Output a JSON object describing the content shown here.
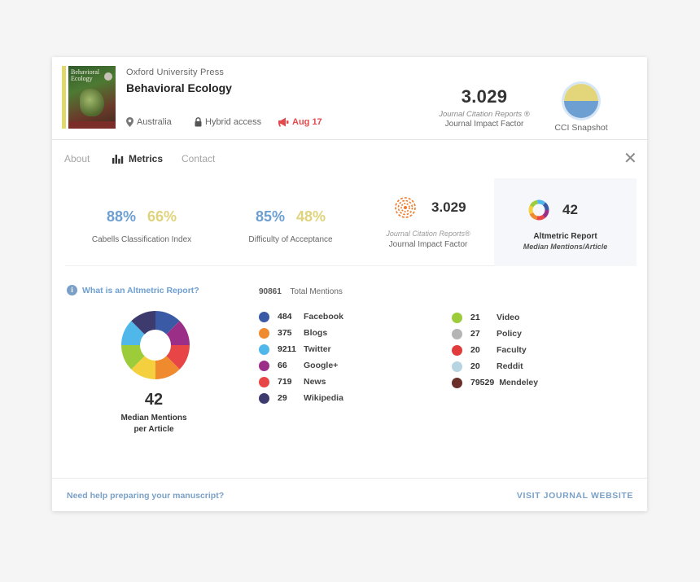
{
  "header": {
    "cover_title": "Behavioral Ecology",
    "publisher": "Oxford University Press",
    "journal": "Behavioral Ecology",
    "location": "Australia",
    "access": "Hybrid access",
    "date": "Aug 17",
    "jif_value": "3.029",
    "jif_label_1": "Journal Citation Reports ®",
    "jif_label_2": "Journal Impact Factor",
    "cci_label": "CCI Snapshot",
    "colors": {
      "accent_bar": "#e1d86b",
      "alert": "#e5484d"
    }
  },
  "tabs": [
    {
      "label": "About"
    },
    {
      "label": "Metrics",
      "active": true
    },
    {
      "label": "Contact"
    }
  ],
  "metrics": {
    "cci": {
      "blue": "88%",
      "yellow": "66%",
      "caption": "Cabells Classification Index"
    },
    "doa": {
      "blue": "85%",
      "yellow": "48%",
      "caption": "Difficulty of Acceptance"
    },
    "jif": {
      "value": "3.029",
      "label_1": "Journal Citation Reports®",
      "label_2": "Journal Impact Factor"
    },
    "altmetric": {
      "value": "42",
      "label_1": "Altmetric Report",
      "label_2": "Median Mentions/Article"
    }
  },
  "altmetric": {
    "help_link": "What is an Altmetric Report?",
    "median": "42",
    "median_caption_1": "Median Mentions",
    "median_caption_2": "per Article",
    "total_value": "90861",
    "total_label": "Total Mentions",
    "sources_left": [
      {
        "count": "484",
        "name": "Facebook",
        "color": "#3b5aa6"
      },
      {
        "count": "375",
        "name": "Blogs",
        "color": "#f08a2e"
      },
      {
        "count": "9211",
        "name": "Twitter",
        "color": "#4fb7ea"
      },
      {
        "count": "66",
        "name": "Google+",
        "color": "#9b2f87"
      },
      {
        "count": "719",
        "name": "News",
        "color": "#e84646"
      },
      {
        "count": "29",
        "name": "Wikipedia",
        "color": "#3d3a6e"
      }
    ],
    "sources_right": [
      {
        "count": "21",
        "name": "Video",
        "color": "#9ccc3a"
      },
      {
        "count": "27",
        "name": "Policy",
        "color": "#b5b5b5"
      },
      {
        "count": "20",
        "name": "Faculty",
        "color": "#e23b3b"
      },
      {
        "count": "20",
        "name": "Reddit",
        "color": "#b7d4e3"
      },
      {
        "count": "79529",
        "name": "Mendeley",
        "color": "#6b2f2a"
      }
    ]
  },
  "footer": {
    "help": "Need help preparing your manuscript?",
    "visit": "VISIT JOURNAL WEBSITE"
  }
}
